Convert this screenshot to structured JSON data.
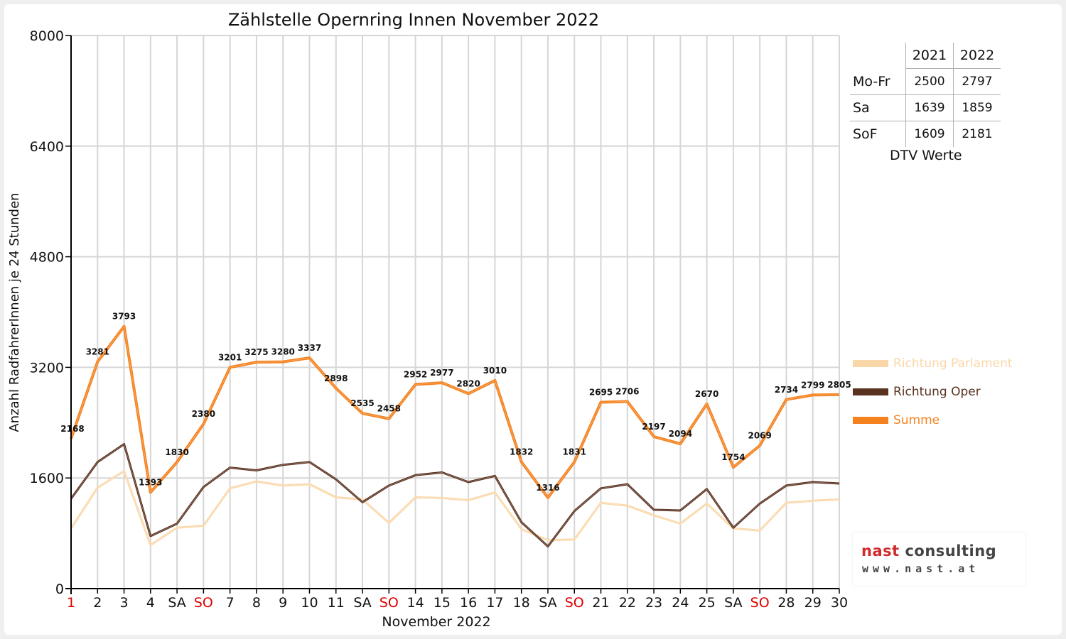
{
  "chart_data": {
    "type": "line",
    "title": "Zählstelle Opernring Innen November 2022",
    "xlabel": "November 2022",
    "ylabel": "Anzahl RadfahrerInnen je 24 Stunden",
    "ylim": [
      0,
      8000
    ],
    "yticks": [
      0,
      1600,
      3200,
      4800,
      6400,
      8000
    ],
    "grid": true,
    "categories": [
      "1",
      "2",
      "3",
      "4",
      "SA",
      "SO",
      "7",
      "8",
      "9",
      "10",
      "11",
      "SA",
      "SO",
      "14",
      "15",
      "16",
      "17",
      "18",
      "SA",
      "SO",
      "21",
      "22",
      "23",
      "24",
      "25",
      "SA",
      "SO",
      "28",
      "29",
      "30"
    ],
    "red_categories": [
      0,
      5,
      12,
      19,
      26
    ],
    "series": [
      {
        "name": "Richtung Parlament",
        "color": "#fad7a8",
        "values": [
          870,
          1460,
          1700,
          630,
          880,
          910,
          1450,
          1550,
          1490,
          1510,
          1320,
          1290,
          950,
          1320,
          1310,
          1280,
          1390,
          860,
          700,
          710,
          1240,
          1200,
          1060,
          940,
          1230,
          870,
          840,
          1240,
          1270,
          1290
        ]
      },
      {
        "name": "Richtung Oper",
        "color": "#5a3220",
        "values": [
          1300,
          1830,
          2090,
          760,
          940,
          1470,
          1750,
          1710,
          1790,
          1830,
          1580,
          1250,
          1490,
          1640,
          1680,
          1540,
          1630,
          960,
          610,
          1120,
          1450,
          1510,
          1140,
          1130,
          1440,
          880,
          1230,
          1490,
          1540,
          1520
        ]
      },
      {
        "name": "Summe",
        "color": "#f5821f",
        "values": [
          2168,
          3281,
          3793,
          1393,
          1830,
          2380,
          3201,
          3275,
          3280,
          3337,
          2898,
          2535,
          2458,
          2952,
          2977,
          2820,
          3010,
          1832,
          1316,
          1831,
          2695,
          2706,
          2197,
          2094,
          2670,
          1754,
          2069,
          2734,
          2799,
          2805
        ]
      }
    ],
    "data_labels": [
      "2168",
      "3281",
      "3793",
      "1393",
      "1830",
      "2380",
      "3201",
      "3275",
      "3280",
      "3337",
      "2898",
      "2535",
      "2458",
      "2952",
      "2977",
      "2820",
      "3010",
      "1832",
      "1316",
      "1831",
      "2695",
      "2706",
      "2197",
      "2094",
      "2670",
      "1754",
      "2069",
      "2734",
      "2799",
      "2805"
    ],
    "legend_position": "right"
  },
  "dtv": {
    "caption": "DTV Werte",
    "years": [
      "2021",
      "2022"
    ],
    "rows": [
      {
        "label": "Mo-Fr",
        "v2021": "2500",
        "v2022": "2797"
      },
      {
        "label": "Sa",
        "v2021": "1639",
        "v2022": "1859"
      },
      {
        "label": "SoF",
        "v2021": "1609",
        "v2022": "2181"
      }
    ]
  },
  "logo": {
    "name_part1": "nast",
    "name_part2": "consulting",
    "url": "www.nast.at"
  },
  "colors": {
    "weekend_label": "#e00000",
    "axis": "#000000",
    "grid": "#d6d6d6"
  }
}
